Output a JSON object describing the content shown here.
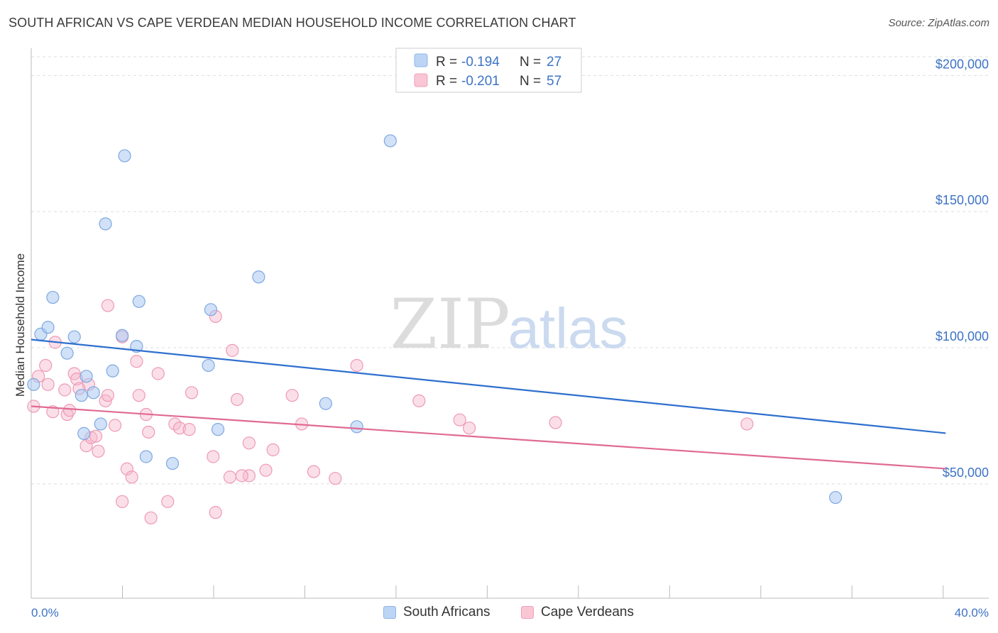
{
  "header": {
    "title": "SOUTH AFRICAN VS CAPE VERDEAN MEDIAN HOUSEHOLD INCOME CORRELATION CHART",
    "source": "Source: ZipAtlas.com"
  },
  "watermark": {
    "zip": "ZIP",
    "atlas": "atlas"
  },
  "chart_data": {
    "type": "scatter",
    "title": "SOUTH AFRICAN VS CAPE VERDEAN MEDIAN HOUSEHOLD INCOME CORRELATION CHART",
    "xlabel": "",
    "ylabel": "Median Household Income",
    "xlim": [
      0,
      40
    ],
    "ylim": [
      8000,
      210000
    ],
    "x_tick_labels": {
      "min": "0.0%",
      "max": "40.0%"
    },
    "y_ticks": [
      {
        "value": 50000,
        "label": "$50,000"
      },
      {
        "value": 100000,
        "label": "$100,000"
      },
      {
        "value": 150000,
        "label": "$150,000"
      },
      {
        "value": 200000,
        "label": "$200,000"
      }
    ],
    "grid": true,
    "legend_position": "top-center",
    "series": [
      {
        "name": "South Africans",
        "color": "#a9c8f2",
        "line_color": "#2e6fce",
        "stats": {
          "r_label": "R =",
          "r": "-0.194",
          "n_label": "N =",
          "n": "27"
        },
        "trend": {
          "x": [
            0,
            40
          ],
          "y": [
            103000,
            67000
          ]
        },
        "points": [
          [
            0.1,
            86500
          ],
          [
            0.4,
            105000
          ],
          [
            0.7,
            107500
          ],
          [
            0.9,
            118500
          ],
          [
            1.5,
            98000
          ],
          [
            1.8,
            104000
          ],
          [
            2.1,
            82500
          ],
          [
            2.3,
            89500
          ],
          [
            2.6,
            83500
          ],
          [
            2.9,
            72000
          ],
          [
            2.2,
            68500
          ],
          [
            3.1,
            145500
          ],
          [
            3.4,
            91500
          ],
          [
            3.9,
            170500
          ],
          [
            3.8,
            104500
          ],
          [
            4.4,
            100500
          ],
          [
            4.5,
            117000
          ],
          [
            4.8,
            60000
          ],
          [
            5.9,
            57500
          ],
          [
            7.5,
            114000
          ],
          [
            7.4,
            93500
          ],
          [
            7.8,
            70000
          ],
          [
            9.5,
            126000
          ],
          [
            12.3,
            79500
          ],
          [
            13.6,
            71000
          ],
          [
            15.0,
            176000
          ],
          [
            33.6,
            45000
          ]
        ]
      },
      {
        "name": "Cape Verdeans",
        "color": "#f7b9cc",
        "line_color": "#e06a94",
        "stats": {
          "r_label": "R =",
          "r": "-0.201",
          "n_label": "N =",
          "n": "57"
        },
        "trend": {
          "x": [
            0,
            40
          ],
          "y": [
            78500,
            54500
          ]
        },
        "points": [
          [
            0.1,
            78500
          ],
          [
            0.3,
            89500
          ],
          [
            0.6,
            93500
          ],
          [
            0.7,
            86500
          ],
          [
            0.9,
            76500
          ],
          [
            1.0,
            102000
          ],
          [
            1.4,
            84500
          ],
          [
            1.5,
            75500
          ],
          [
            1.6,
            77000
          ],
          [
            1.8,
            90500
          ],
          [
            1.9,
            88500
          ],
          [
            2.0,
            85000
          ],
          [
            2.3,
            64000
          ],
          [
            2.5,
            67000
          ],
          [
            2.4,
            86500
          ],
          [
            2.7,
            67500
          ],
          [
            2.8,
            62000
          ],
          [
            3.1,
            80500
          ],
          [
            3.2,
            82500
          ],
          [
            3.2,
            115500
          ],
          [
            3.5,
            71500
          ],
          [
            3.8,
            104000
          ],
          [
            3.8,
            43500
          ],
          [
            4.0,
            55500
          ],
          [
            4.2,
            52500
          ],
          [
            4.4,
            95000
          ],
          [
            4.5,
            82500
          ],
          [
            4.8,
            75500
          ],
          [
            4.9,
            69000
          ],
          [
            5.0,
            37500
          ],
          [
            5.3,
            90500
          ],
          [
            5.7,
            43500
          ],
          [
            6.0,
            72000
          ],
          [
            6.2,
            70500
          ],
          [
            6.7,
            83500
          ],
          [
            7.6,
            60000
          ],
          [
            7.7,
            111500
          ],
          [
            7.7,
            39500
          ],
          [
            8.3,
            52500
          ],
          [
            8.4,
            99000
          ],
          [
            8.6,
            81000
          ],
          [
            9.1,
            65000
          ],
          [
            9.1,
            53000
          ],
          [
            9.8,
            55000
          ],
          [
            10.1,
            62500
          ],
          [
            10.9,
            82500
          ],
          [
            11.3,
            72000
          ],
          [
            11.8,
            54500
          ],
          [
            12.7,
            52000
          ],
          [
            13.6,
            93500
          ],
          [
            16.2,
            80500
          ],
          [
            17.9,
            73500
          ],
          [
            18.3,
            70500
          ],
          [
            21.9,
            72500
          ],
          [
            29.9,
            72000
          ],
          [
            8.8,
            53000
          ],
          [
            6.6,
            70000
          ]
        ]
      }
    ]
  }
}
